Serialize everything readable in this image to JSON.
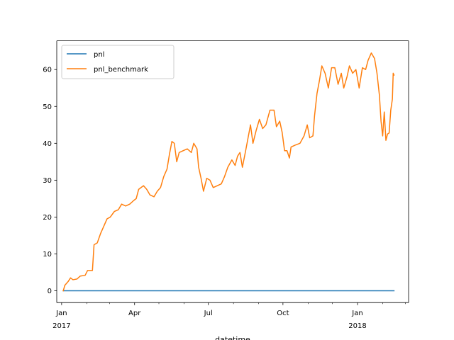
{
  "chart_data": {
    "type": "line",
    "xlabel": "datetime",
    "ylabel": "",
    "x_range": [
      "2016-12-26",
      "2018-03-05"
    ],
    "ylim": [
      -3.2,
      67.8
    ],
    "grid": false,
    "legend": "top-left",
    "y_ticks": [
      0,
      10,
      20,
      30,
      40,
      50,
      60
    ],
    "x_major_ticks": [
      {
        "date": "2017-01-01",
        "label": "Jan",
        "sublabel": "2017"
      },
      {
        "date": "2017-04-01",
        "label": "Apr",
        "sublabel": ""
      },
      {
        "date": "2017-07-01",
        "label": "Jul",
        "sublabel": ""
      },
      {
        "date": "2017-10-01",
        "label": "Oct",
        "sublabel": ""
      },
      {
        "date": "2018-01-01",
        "label": "Jan",
        "sublabel": "2018"
      }
    ],
    "x_minor_ticks": [
      "2017-02-01",
      "2017-03-01",
      "2017-05-01",
      "2017-06-01",
      "2017-08-01",
      "2017-09-01",
      "2017-11-01",
      "2017-12-01",
      "2018-02-01",
      "2018-03-01"
    ],
    "series": [
      {
        "name": "pnl",
        "color": "#1f77b4",
        "points": [
          [
            "2017-01-03",
            0
          ],
          [
            "2018-02-15",
            0
          ]
        ]
      },
      {
        "name": "pnl_benchmark",
        "color": "#ff7f0e",
        "points": [
          [
            "2017-01-03",
            0
          ],
          [
            "2017-01-05",
            1.5
          ],
          [
            "2017-01-09",
            2.5
          ],
          [
            "2017-01-12",
            3.5
          ],
          [
            "2017-01-15",
            3.0
          ],
          [
            "2017-01-20",
            3.2
          ],
          [
            "2017-01-24",
            4.0
          ],
          [
            "2017-01-30",
            4.2
          ],
          [
            "2017-02-02",
            5.5
          ],
          [
            "2017-02-08",
            5.5
          ],
          [
            "2017-02-10",
            12.5
          ],
          [
            "2017-02-14",
            13.0
          ],
          [
            "2017-02-18",
            15.5
          ],
          [
            "2017-02-21",
            17.0
          ],
          [
            "2017-02-26",
            19.5
          ],
          [
            "2017-03-02",
            20.0
          ],
          [
            "2017-03-07",
            21.5
          ],
          [
            "2017-03-12",
            22.0
          ],
          [
            "2017-03-16",
            23.5
          ],
          [
            "2017-03-21",
            23.0
          ],
          [
            "2017-03-26",
            23.5
          ],
          [
            "2017-03-31",
            24.5
          ],
          [
            "2017-04-03",
            25.0
          ],
          [
            "2017-04-06",
            27.5
          ],
          [
            "2017-04-09",
            28.0
          ],
          [
            "2017-04-12",
            28.5
          ],
          [
            "2017-04-16",
            27.5
          ],
          [
            "2017-04-20",
            26.0
          ],
          [
            "2017-04-25",
            25.5
          ],
          [
            "2017-04-29",
            27.0
          ],
          [
            "2017-05-03",
            28.0
          ],
          [
            "2017-05-07",
            31.0
          ],
          [
            "2017-05-11",
            33.0
          ],
          [
            "2017-05-14",
            37.0
          ],
          [
            "2017-05-17",
            40.5
          ],
          [
            "2017-05-20",
            40.0
          ],
          [
            "2017-05-23",
            35.0
          ],
          [
            "2017-05-26",
            37.5
          ],
          [
            "2017-05-31",
            38.0
          ],
          [
            "2017-06-05",
            38.5
          ],
          [
            "2017-06-10",
            37.5
          ],
          [
            "2017-06-13",
            40.0
          ],
          [
            "2017-06-17",
            38.5
          ],
          [
            "2017-06-19",
            33.5
          ],
          [
            "2017-06-22",
            30.5
          ],
          [
            "2017-06-25",
            27.0
          ],
          [
            "2017-06-29",
            30.5
          ],
          [
            "2017-07-03",
            30.0
          ],
          [
            "2017-07-07",
            28.0
          ],
          [
            "2017-07-12",
            28.5
          ],
          [
            "2017-07-17",
            29.0
          ],
          [
            "2017-07-21",
            31.0
          ],
          [
            "2017-07-25",
            33.5
          ],
          [
            "2017-07-30",
            35.5
          ],
          [
            "2017-08-03",
            34.0
          ],
          [
            "2017-08-06",
            36.5
          ],
          [
            "2017-08-09",
            37.5
          ],
          [
            "2017-08-12",
            33.5
          ],
          [
            "2017-08-16",
            38.0
          ],
          [
            "2017-08-19",
            41.5
          ],
          [
            "2017-08-22",
            45.0
          ],
          [
            "2017-08-25",
            40.0
          ],
          [
            "2017-08-29",
            43.5
          ],
          [
            "2017-09-02",
            46.5
          ],
          [
            "2017-09-06",
            44.0
          ],
          [
            "2017-09-10",
            45.0
          ],
          [
            "2017-09-15",
            49.0
          ],
          [
            "2017-09-20",
            49.0
          ],
          [
            "2017-09-23",
            44.5
          ],
          [
            "2017-09-27",
            46.0
          ],
          [
            "2017-09-30",
            43.0
          ],
          [
            "2017-10-03",
            38.0
          ],
          [
            "2017-10-06",
            38.0
          ],
          [
            "2017-10-09",
            36.0
          ],
          [
            "2017-10-11",
            39.0
          ],
          [
            "2017-10-16",
            39.5
          ],
          [
            "2017-10-22",
            40.0
          ],
          [
            "2017-10-27",
            42.0
          ],
          [
            "2017-10-31",
            45.0
          ],
          [
            "2017-11-03",
            41.5
          ],
          [
            "2017-11-07",
            42.0
          ],
          [
            "2017-11-09",
            47.5
          ],
          [
            "2017-11-12",
            53.5
          ],
          [
            "2017-11-15",
            57.0
          ],
          [
            "2017-11-18",
            61.0
          ],
          [
            "2017-11-22",
            59.0
          ],
          [
            "2017-11-26",
            55.0
          ],
          [
            "2017-11-30",
            60.5
          ],
          [
            "2017-12-04",
            60.5
          ],
          [
            "2017-12-08",
            56.0
          ],
          [
            "2017-12-12",
            59.0
          ],
          [
            "2017-12-15",
            55.0
          ],
          [
            "2017-12-19",
            58.0
          ],
          [
            "2017-12-22",
            61.0
          ],
          [
            "2017-12-26",
            59.0
          ],
          [
            "2017-12-30",
            60.0
          ],
          [
            "2018-01-03",
            55.0
          ],
          [
            "2018-01-07",
            60.5
          ],
          [
            "2018-01-11",
            60.0
          ],
          [
            "2018-01-14",
            62.5
          ],
          [
            "2018-01-18",
            64.5
          ],
          [
            "2018-01-22",
            63.0
          ],
          [
            "2018-01-25",
            59.0
          ],
          [
            "2018-01-28",
            53.0
          ],
          [
            "2018-01-30",
            46.0
          ],
          [
            "2018-02-01",
            42.0
          ],
          [
            "2018-02-03",
            48.5
          ],
          [
            "2018-02-05",
            40.8
          ],
          [
            "2018-02-07",
            42.5
          ],
          [
            "2018-02-09",
            42.8
          ],
          [
            "2018-02-11",
            49.0
          ],
          [
            "2018-02-13",
            52.0
          ],
          [
            "2018-02-14",
            59.0
          ],
          [
            "2018-02-15",
            58.5
          ]
        ]
      }
    ]
  }
}
